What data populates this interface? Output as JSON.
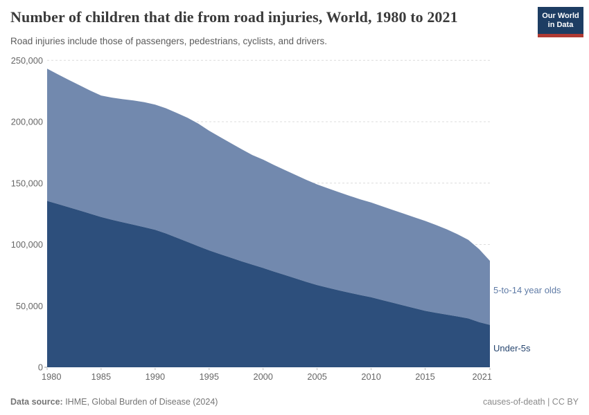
{
  "header": {
    "title": "Number of children that die from road injuries, World, 1980 to 2021",
    "subtitle": "Road injuries include those of passengers, pedestrians, cyclists, and drivers.",
    "logo": {
      "line1": "Our World",
      "line2": "in Data"
    }
  },
  "chart_data": {
    "type": "area",
    "stacked": true,
    "title": "Number of children that die from road injuries, World, 1980 to 2021",
    "xlabel": "",
    "ylabel": "",
    "x": [
      1980,
      1981,
      1982,
      1983,
      1984,
      1985,
      1986,
      1987,
      1988,
      1989,
      1990,
      1991,
      1992,
      1993,
      1994,
      1995,
      1996,
      1997,
      1998,
      1999,
      2000,
      2001,
      2002,
      2003,
      2004,
      2005,
      2006,
      2007,
      2008,
      2009,
      2010,
      2011,
      2012,
      2013,
      2014,
      2015,
      2016,
      2017,
      2018,
      2019,
      2020,
      2021
    ],
    "series": [
      {
        "name": "Under-5s",
        "color": "#2d4f7c",
        "label_color": "#25446e",
        "values": [
          135500,
          133000,
          130400,
          127800,
          125100,
          122400,
          120200,
          118100,
          116100,
          114100,
          112000,
          109000,
          105600,
          102100,
          98600,
          95200,
          92200,
          89300,
          86400,
          83600,
          80900,
          78000,
          75200,
          72400,
          69600,
          67000,
          64800,
          62700,
          60700,
          58800,
          57000,
          54800,
          52600,
          50400,
          48200,
          46000,
          44400,
          42900,
          41400,
          39800,
          36800,
          34500
        ]
      },
      {
        "name": "5-to-14 year olds",
        "color": "#7289ae",
        "label_color": "#5f7ba6",
        "values": [
          107800,
          105600,
          103700,
          101900,
          100300,
          99000,
          99500,
          100300,
          101200,
          101800,
          102000,
          102000,
          101600,
          101200,
          99900,
          97500,
          95400,
          93300,
          91300,
          89300,
          88300,
          86800,
          85500,
          84300,
          83100,
          82000,
          81000,
          80000,
          79000,
          78000,
          77200,
          76400,
          75600,
          74800,
          74000,
          73200,
          71500,
          69500,
          67000,
          64000,
          59500,
          52200
        ]
      }
    ],
    "ylim": [
      0,
      250000
    ],
    "yticks": [
      0,
      50000,
      100000,
      150000,
      200000,
      250000
    ],
    "ytick_labels": [
      "0",
      "50,000",
      "100,000",
      "150,000",
      "200,000",
      "250,000"
    ],
    "xticks": [
      1980,
      1985,
      1990,
      1995,
      2000,
      2005,
      2010,
      2015,
      2021
    ],
    "xtick_labels": [
      "1980",
      "1985",
      "1990",
      "1995",
      "2000",
      "2005",
      "2010",
      "2015",
      "2021"
    ],
    "grid": "horizontal-dashed",
    "legend_position": "right-edge-labels"
  },
  "footer": {
    "source_label": "Data source:",
    "source_value": " IHME, Global Burden of Disease (2024)",
    "license": "causes-of-death | CC BY"
  }
}
